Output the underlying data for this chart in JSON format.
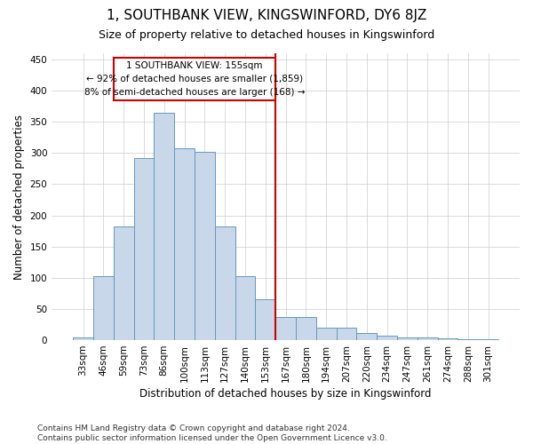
{
  "title": "1, SOUTHBANK VIEW, KINGSWINFORD, DY6 8JZ",
  "subtitle": "Size of property relative to detached houses in Kingswinford",
  "xlabel": "Distribution of detached houses by size in Kingswinford",
  "ylabel": "Number of detached properties",
  "footnote": "Contains HM Land Registry data © Crown copyright and database right 2024.\nContains public sector information licensed under the Open Government Licence v3.0.",
  "categories": [
    "33sqm",
    "46sqm",
    "59sqm",
    "73sqm",
    "86sqm",
    "100sqm",
    "113sqm",
    "127sqm",
    "140sqm",
    "153sqm",
    "167sqm",
    "180sqm",
    "194sqm",
    "207sqm",
    "220sqm",
    "234sqm",
    "247sqm",
    "261sqm",
    "274sqm",
    "288sqm",
    "301sqm"
  ],
  "values": [
    5,
    103,
    183,
    292,
    365,
    308,
    302,
    183,
    103,
    65,
    37,
    37,
    20,
    20,
    12,
    7,
    5,
    5,
    3,
    2,
    2
  ],
  "bar_color": "#c8d8ea",
  "bar_edge_color": "#6699bb",
  "vline_pos": 9.5,
  "vline_color": "#cc0000",
  "annotation_line1": "1 SOUTHBANK VIEW: 155sqm",
  "annotation_line2": "← 92% of detached houses are smaller (1,859)",
  "annotation_line3": "8% of semi-detached houses are larger (168) →",
  "annotation_box_color": "#cc0000",
  "ylim": [
    0,
    460
  ],
  "yticks": [
    0,
    50,
    100,
    150,
    200,
    250,
    300,
    350,
    400,
    450
  ],
  "title_fontsize": 11,
  "subtitle_fontsize": 9,
  "xlabel_fontsize": 8.5,
  "ylabel_fontsize": 8.5,
  "tick_fontsize": 7.5,
  "annotation_fontsize": 7.5,
  "footnote_fontsize": 6.5
}
